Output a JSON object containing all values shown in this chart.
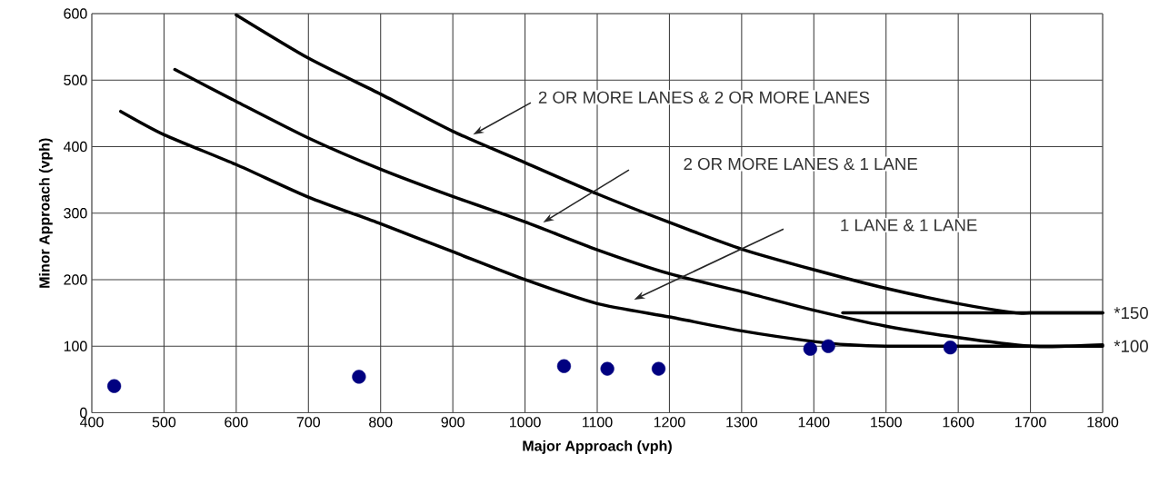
{
  "chart_data": {
    "type": "line",
    "xlabel": "Major Approach (vph)",
    "ylabel": "Minor Approach (vph)",
    "xlim": [
      400,
      1800
    ],
    "ylim": [
      0,
      600
    ],
    "xticks": [
      400,
      500,
      600,
      700,
      800,
      900,
      1000,
      1100,
      1200,
      1300,
      1400,
      1500,
      1600,
      1700,
      1800
    ],
    "yticks": [
      0,
      100,
      200,
      300,
      400,
      500,
      600
    ],
    "grid": true,
    "series": [
      {
        "color": "#000000",
        "x": [
          600,
          700,
          800,
          900,
          1000,
          1100,
          1200,
          1300,
          1400,
          1500,
          1600,
          1680,
          1700,
          1800
        ],
        "values": [
          598,
          533,
          479,
          423,
          376,
          329,
          286,
          246,
          215,
          187,
          164,
          150,
          150,
          150
        ]
      },
      {
        "color": "#000000",
        "x": [
          515,
          600,
          700,
          800,
          900,
          1000,
          1100,
          1200,
          1300,
          1400,
          1500,
          1600,
          1700,
          1750,
          1800
        ],
        "values": [
          516,
          468,
          413,
          366,
          325,
          287,
          245,
          209,
          182,
          154,
          130,
          113,
          100,
          100,
          102
        ]
      },
      {
        "color": "#000000",
        "x": [
          440,
          500,
          600,
          700,
          800,
          900,
          1000,
          1100,
          1200,
          1300,
          1400,
          1450,
          1500,
          1600,
          1700,
          1800
        ],
        "values": [
          453,
          418,
          373,
          324,
          284,
          242,
          200,
          164,
          144,
          123,
          107,
          102,
          100,
          100,
          100,
          100
        ]
      },
      {
        "color": "#000000",
        "x": [
          1440,
          1800
        ],
        "values": [
          150,
          150
        ]
      },
      {
        "type": "scatter",
        "color": "#000080",
        "x": [
          431,
          770,
          1054,
          1114,
          1185,
          1395,
          1420,
          1589
        ],
        "values": [
          40,
          54,
          70,
          66,
          66,
          96,
          100,
          98
        ]
      }
    ],
    "annotations": [
      "2 OR MORE LANES & 2 OR MORE LANES",
      "2 OR MORE LANES & 1 LANE",
      "1 LANE & 1 LANE",
      {
        "text": "*150",
        "x": 1800,
        "y": 150
      },
      {
        "text": "*100",
        "x": 1800,
        "y": 100
      }
    ]
  }
}
